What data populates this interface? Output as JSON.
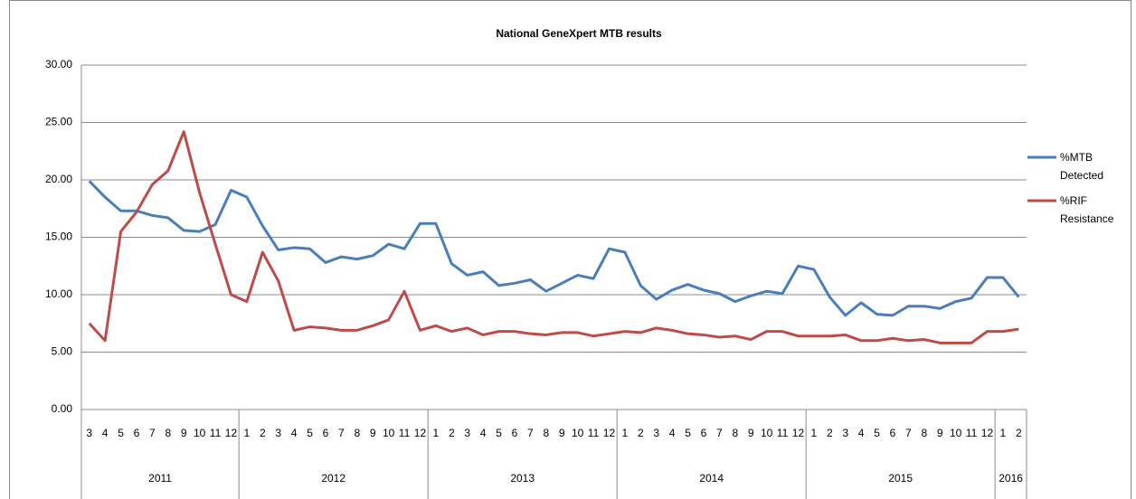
{
  "chart_data": {
    "type": "line",
    "title": "National GeneXpert MTB results",
    "category_groups": [
      {
        "name": "2011",
        "categories": [
          "3",
          "4",
          "5",
          "6",
          "7",
          "8",
          "9",
          "10",
          "11",
          "12"
        ]
      },
      {
        "name": "2012",
        "categories": [
          "1",
          "2",
          "3",
          "4",
          "5",
          "6",
          "7",
          "8",
          "9",
          "10",
          "11",
          "12"
        ]
      },
      {
        "name": "2013",
        "categories": [
          "1",
          "2",
          "3",
          "4",
          "5",
          "6",
          "7",
          "8",
          "9",
          "10",
          "11",
          "12"
        ]
      },
      {
        "name": "2014",
        "categories": [
          "1",
          "2",
          "3",
          "4",
          "5",
          "6",
          "7",
          "8",
          "9",
          "10",
          "11",
          "12"
        ]
      },
      {
        "name": "2015",
        "categories": [
          "1",
          "2",
          "3",
          "4",
          "5",
          "6",
          "7",
          "8",
          "9",
          "10",
          "11",
          "12"
        ]
      },
      {
        "name": "2016",
        "categories": [
          "1",
          "2"
        ]
      }
    ],
    "series": [
      {
        "name": "%MTB Detected",
        "color": "#4a7ebb",
        "values": [
          19.9,
          18.5,
          17.3,
          17.3,
          16.9,
          16.7,
          15.6,
          15.5,
          16.1,
          19.1,
          18.5,
          16.0,
          13.9,
          14.1,
          14.0,
          12.8,
          13.3,
          13.1,
          13.4,
          14.4,
          14.0,
          16.2,
          16.2,
          12.7,
          11.7,
          12.0,
          10.8,
          11.0,
          11.3,
          10.3,
          11.0,
          11.7,
          11.4,
          14.0,
          13.7,
          10.8,
          9.6,
          10.4,
          10.9,
          10.4,
          10.1,
          9.4,
          9.9,
          10.3,
          10.1,
          12.5,
          12.2,
          9.8,
          8.2,
          9.3,
          8.3,
          8.2,
          9.0,
          9.0,
          8.8,
          9.4,
          9.7,
          11.5,
          11.5,
          9.8
        ]
      },
      {
        "name": "%RIF Resistance",
        "color": "#be4b48",
        "values": [
          7.5,
          6.0,
          15.5,
          17.2,
          19.6,
          20.8,
          24.2,
          18.9,
          14.4,
          10.0,
          9.4,
          13.7,
          11.2,
          6.9,
          7.2,
          7.1,
          6.9,
          6.9,
          7.3,
          7.8,
          10.3,
          6.9,
          7.3,
          6.8,
          7.1,
          6.5,
          6.8,
          6.8,
          6.6,
          6.5,
          6.7,
          6.7,
          6.4,
          6.6,
          6.8,
          6.7,
          7.1,
          6.9,
          6.6,
          6.5,
          6.3,
          6.4,
          6.1,
          6.8,
          6.8,
          6.4,
          6.4,
          6.4,
          6.5,
          6.0,
          6.0,
          6.2,
          6.0,
          6.1,
          5.8,
          5.8,
          5.8,
          6.8,
          6.8,
          7.0
        ]
      }
    ],
    "ylim": [
      0,
      30
    ],
    "yticks": [
      {
        "value": 0,
        "label": "0.00"
      },
      {
        "value": 5,
        "label": "5.00"
      },
      {
        "value": 10,
        "label": "10.00"
      },
      {
        "value": 15,
        "label": "15.00"
      },
      {
        "value": 20,
        "label": "20.00"
      },
      {
        "value": 25,
        "label": "25.00"
      },
      {
        "value": 30,
        "label": "30.00"
      }
    ],
    "grid": true,
    "legend": "right"
  }
}
